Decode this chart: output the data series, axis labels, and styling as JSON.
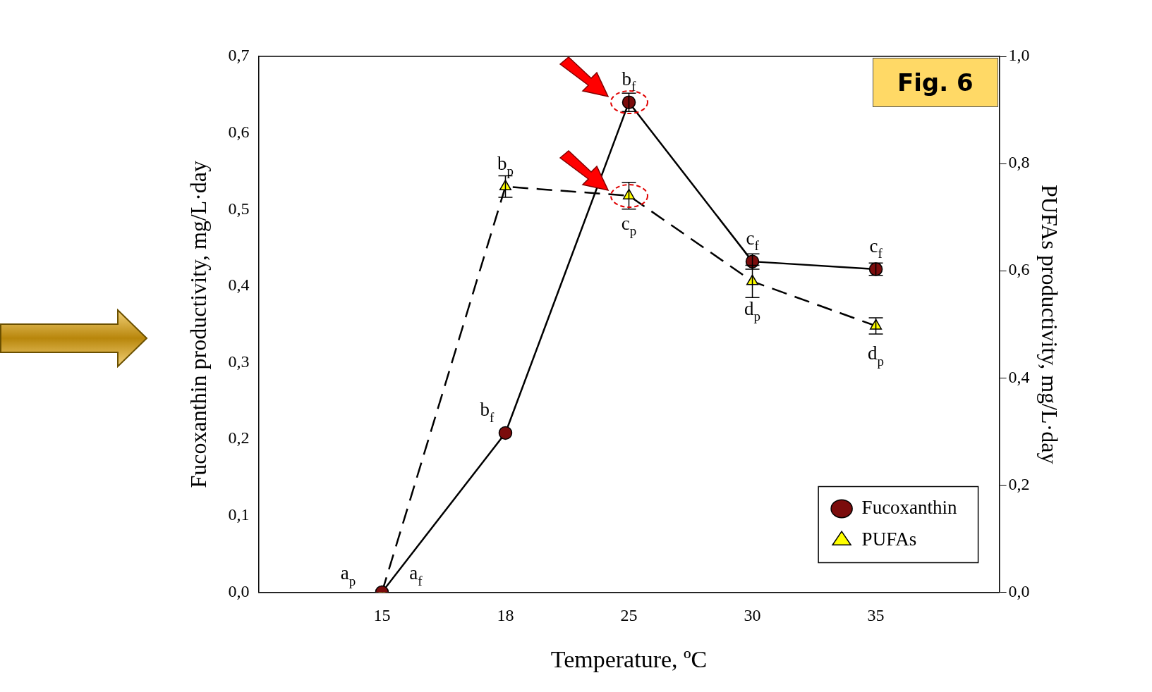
{
  "chart_data": {
    "type": "line",
    "xlabel": "Temperature, ºC",
    "ylabel": "Fucoxanthin productivity, mg/L·day",
    "y2label": "PUFAs productivity, mg/L·day",
    "categories": [
      "15",
      "18",
      "25",
      "30",
      "35"
    ],
    "series": [
      {
        "name": "Fucoxanthin",
        "color": "#7b0c0c",
        "marker": "circle",
        "line_style": "solid",
        "values": [
          0,
          0.208,
          0.64,
          0.432,
          0.422
        ],
        "value_labels": [
          "a$_{f}$",
          "b$_{f}$",
          "b$_{f}$",
          "c$_{f}$",
          "c$_{f}$"
        ],
        "errors": [
          null,
          null,
          0.012,
          0.01,
          0.008
        ]
      },
      {
        "name": "PUFAs",
        "color": "#ffff00",
        "marker": "triangle",
        "line_style": "dashed",
        "axis": "y2",
        "values": [
          0,
          0.757,
          0.74,
          0.58,
          0.497
        ],
        "value_labels": [
          "a$_{p}$",
          "b$_{p}$",
          "c$_{p}$",
          "d$_{p}$",
          "d$_{p}$"
        ],
        "errors": [
          null,
          0.02,
          0.025,
          0.03,
          0.015
        ]
      }
    ],
    "ylim": [
      0,
      0.7
    ],
    "yticks": [
      {
        "value": 0,
        "label": "0,0"
      },
      {
        "value": 0.1,
        "label": "0,1"
      },
      {
        "value": 0.2,
        "label": "0,2"
      },
      {
        "value": 0.3,
        "label": "0,3"
      },
      {
        "value": 0.4,
        "label": "0,4"
      },
      {
        "value": 0.5,
        "label": "0,5"
      },
      {
        "value": 0.6,
        "label": "0,6"
      },
      {
        "value": 0.7,
        "label": "0,7"
      }
    ],
    "y2lim": [
      0,
      1
    ],
    "y2ticks": [
      {
        "value": 0,
        "label": "0,0"
      },
      {
        "value": 0.2,
        "label": "0,2"
      },
      {
        "value": 0.4,
        "label": "0,4"
      },
      {
        "value": 0.6,
        "label": "0,6"
      },
      {
        "value": 0.8,
        "label": "0,8"
      },
      {
        "value": 1,
        "label": "1,0"
      }
    ],
    "grid": false,
    "legend": "bottom right",
    "annotations": [
      "Fig. 6"
    ]
  }
}
